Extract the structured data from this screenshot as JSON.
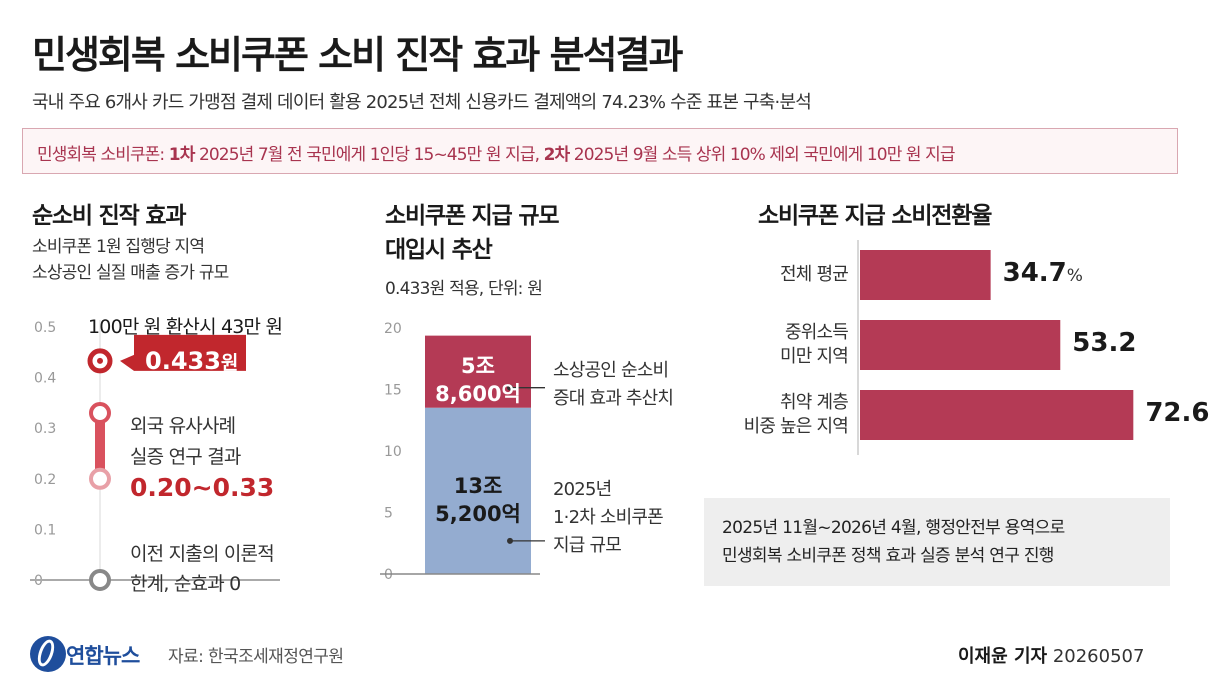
{
  "header": {
    "title": "민생회복 소비쿠폰 소비 진작 효과 분석결과",
    "subtitle": "국내 주요 6개사 카드 가맹점 결제 데이터 활용 2025년 전체 신용카드 결제액의 74.23% 수준 표본 구축·분석"
  },
  "notice": {
    "prefix": "민생회복 소비쿠폰: ",
    "first_bold": "1차",
    "first_text": " 2025년 7월 전 국민에게 1인당 15~45만 원 지급, ",
    "second_bold": "2차",
    "second_text": " 2025년 9월 소득 상위 10% 제외 국민에게 10만 원 지급"
  },
  "left_section": {
    "title": "순소비 진작 효과",
    "desc_line1": "소비쿠폰 1원 집행당 지역",
    "desc_line2": "소상공인 실질 매출 증가 규모",
    "ticks": [
      "0.5",
      "0.4",
      "0.3",
      "0.2",
      "0.1",
      "0"
    ],
    "conversion_note": "100만 원 환산시 43만 원",
    "main_value": "0.433",
    "main_unit": "원",
    "foreign_line1": "외국 유사사례",
    "foreign_line2": "실증 연구 결과",
    "foreign_range": "0.20~0.33",
    "zero_line1": "이전 지출의 이론적",
    "zero_line2": "한계, 순효과 0"
  },
  "middle_section": {
    "title_line1": "소비쿠폰 지급 규모",
    "title_line2": "대입시 추산",
    "note": "0.433원 적용, 단위: 원",
    "ticks": [
      "20",
      "15",
      "10",
      "5",
      "0"
    ],
    "top_label_line1": "5조",
    "top_label_line2": "8,600억",
    "bottom_label_line1": "13조",
    "bottom_label_line2": "5,200억",
    "top_desc_line1": "소상공인 순소비",
    "top_desc_line2": "증대 효과 추산치",
    "bottom_desc_line1": "2025년",
    "bottom_desc_line2": "1·2차 소비쿠폰",
    "bottom_desc_line3": "지급 규모"
  },
  "right_section": {
    "title": "소비쿠폰 지급 소비전환율",
    "pct_unit": "%",
    "bars": [
      {
        "label_line1": "전체 평균",
        "label_line2": "",
        "value_text": "34.7"
      },
      {
        "label_line1": "중위소득",
        "label_line2": "미만 지역",
        "value_text": "53.2"
      },
      {
        "label_line1": "취약 계층",
        "label_line2": "비중 높은 지역",
        "value_text": "72.6"
      }
    ]
  },
  "info_box": {
    "line1": "2025년 11월~2026년 4월, 행정안전부 용역으로",
    "line2": "민생회복 소비쿠폰 정책 효과 실증 분석 연구 진행"
  },
  "footer": {
    "logo_text": "연합뉴스",
    "source": "자료: 한국조세재정연구원",
    "reporter": "이재윤 기자",
    "date": "20260507"
  },
  "colors": {
    "accent_red": "#c1272d",
    "bar_crimson": "#b43a55",
    "bar_blue": "#94acd0",
    "notice_text": "#a8344f"
  },
  "chart_data": [
    {
      "type": "scatter",
      "title": "순소비 진작 효과",
      "ylim": [
        0,
        0.5
      ],
      "points": [
        {
          "name": "0.433원",
          "y": 0.433
        },
        {
          "name": "외국 유사사례 실증 연구 결과",
          "y_range": [
            0.2,
            0.33
          ]
        },
        {
          "name": "이전 지출의 이론적 한계, 순효과 0",
          "y": 0
        }
      ]
    },
    {
      "type": "bar",
      "title": "소비쿠폰 지급 규모 대입시 추산",
      "ylabel": "단위: 원",
      "ylim": [
        0,
        20
      ],
      "categories": [
        ""
      ],
      "series": [
        {
          "name": "2025년 1·2차 소비쿠폰 지급 규모",
          "values": [
            13.52
          ]
        },
        {
          "name": "소상공인 순소비 증대 효과 추산치",
          "values": [
            5.86
          ]
        }
      ],
      "stacked": true
    },
    {
      "type": "bar",
      "orientation": "horizontal",
      "title": "소비쿠폰 지급 소비전환율",
      "categories": [
        "전체 평균",
        "중위소득 미만 지역",
        "취약 계층 비중 높은 지역"
      ],
      "values": [
        34.7,
        53.2,
        72.6
      ],
      "xlim": [
        0,
        85
      ]
    }
  ]
}
